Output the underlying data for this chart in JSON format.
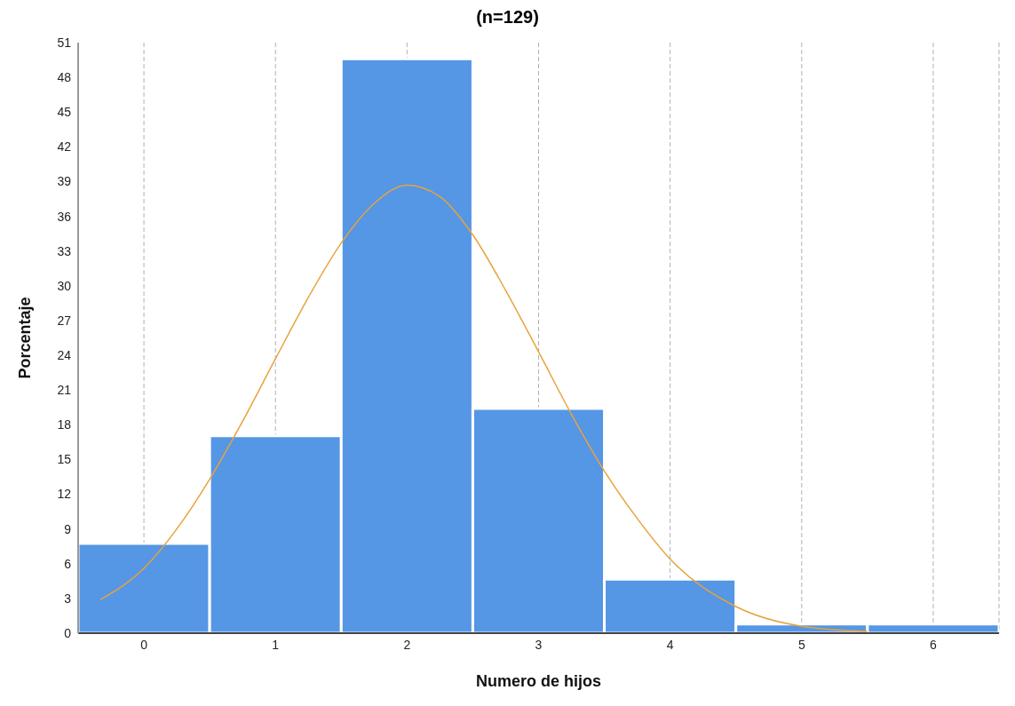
{
  "chart_data": {
    "type": "histogram",
    "title": "(n=129)",
    "xlabel": "Numero de hijos",
    "ylabel": "Porcentaje",
    "bins": [
      -0.5,
      0.5,
      1.5,
      2.5,
      3.5,
      4.5,
      5.5,
      6.5
    ],
    "values": [
      7.75,
      17.05,
      49.6,
      19.4,
      4.65,
      0.78,
      0.78
    ],
    "color": "#5596e5",
    "series": [
      {
        "type": "line",
        "color": "#e8a33c",
        "marker": "none",
        "x": [
          -0.33,
          0,
          0.25,
          0.5,
          0.75,
          1,
          1.25,
          1.5,
          1.75,
          2,
          2.25,
          2.5,
          2.75,
          3,
          3.25,
          3.5,
          3.75,
          4,
          4.5,
          5,
          5.5
        ],
        "values": [
          2.9,
          5.6,
          9.0,
          13.3,
          18.3,
          23.7,
          29.0,
          33.7,
          37.1,
          38.7,
          37.7,
          34.4,
          29.6,
          24.3,
          18.9,
          14.0,
          9.9,
          6.4,
          2.3,
          0.6,
          0.15
        ]
      }
    ],
    "xlim": [
      -0.5,
      6.5
    ],
    "xticks": [
      0,
      1,
      2,
      3,
      4,
      5,
      6
    ],
    "ylim": [
      0,
      51
    ],
    "yticks": [
      0,
      3,
      6,
      9,
      12,
      15,
      18,
      21,
      24,
      27,
      30,
      33,
      36,
      39,
      42,
      45,
      48,
      51
    ],
    "grid": "x"
  }
}
